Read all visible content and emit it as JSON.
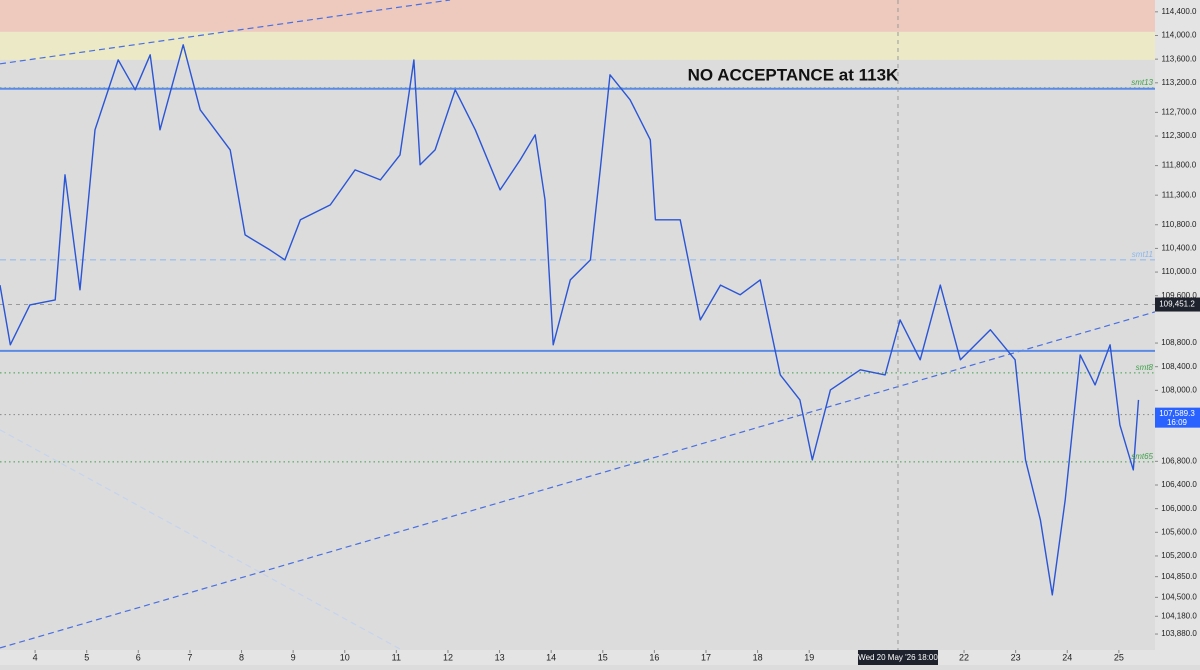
{
  "chart_data": {
    "type": "line",
    "annotation": "NO ACCEPTANCE at 113K",
    "xlim": [
      3.32,
      25.7
    ],
    "ylim": [
      103610,
      114600
    ],
    "xticks": [
      4,
      5,
      6,
      7,
      8,
      9,
      10,
      11,
      12,
      13,
      14,
      15,
      16,
      17,
      18,
      19,
      22,
      23,
      24,
      25
    ],
    "crosshair": {
      "x": 20.72,
      "x_label": "Wed 20 May '26  18:00",
      "y": 109451.2,
      "y_label": "109,451.2"
    },
    "yticks": [
      {
        "value": 114400,
        "label": "114,400.0"
      },
      {
        "value": 114000,
        "label": "114,000.0"
      },
      {
        "value": 113600,
        "label": "113,600.0"
      },
      {
        "value": 113200,
        "label": "113,200.0"
      },
      {
        "value": 112700,
        "label": "112,700.0"
      },
      {
        "value": 112300,
        "label": "112,300.0"
      },
      {
        "value": 111800,
        "label": "111,800.0"
      },
      {
        "value": 111300,
        "label": "111,300.0"
      },
      {
        "value": 110800,
        "label": "110,800.0"
      },
      {
        "value": 110400,
        "label": "110,400.0"
      },
      {
        "value": 110000,
        "label": "110,000.0"
      },
      {
        "value": 109600,
        "label": "109,600.0"
      },
      {
        "value": 108800,
        "label": "108,800.0"
      },
      {
        "value": 108400,
        "label": "108,400.0"
      },
      {
        "value": 108000,
        "label": "108,000.0"
      },
      {
        "value": 106800,
        "label": "106,800.0"
      },
      {
        "value": 106400,
        "label": "106,400.0"
      },
      {
        "value": 106000,
        "label": "106,000.0"
      },
      {
        "value": 105600,
        "label": "105,600.0"
      },
      {
        "value": 105200,
        "label": "105,200.0"
      },
      {
        "value": 104850,
        "label": "104,850.0"
      },
      {
        "value": 104500,
        "label": "104,500.0"
      },
      {
        "value": 104180,
        "label": "104,180.0"
      },
      {
        "value": 103880,
        "label": "103,880.0"
      }
    ],
    "x": [
      3.32,
      3.52,
      3.9,
      4.39,
      4.58,
      4.87,
      5.16,
      5.61,
      5.94,
      6.23,
      6.42,
      6.87,
      7.2,
      7.78,
      8.07,
      8.55,
      8.84,
      9.14,
      9.72,
      10.2,
      10.69,
      11.07,
      11.34,
      11.46,
      11.75,
      12.14,
      12.53,
      13.01,
      13.4,
      13.69,
      13.88,
      14.04,
      14.37,
      14.76,
      14.95,
      15.14,
      15.53,
      15.92,
      16.02,
      16.5,
      16.89,
      17.28,
      17.66,
      18.05,
      18.44,
      18.82,
      19.06,
      19.41,
      19.99,
      20.47,
      20.76,
      21.15,
      21.54,
      21.93,
      22.51,
      22.99,
      23.19,
      23.48,
      23.71,
      23.96,
      24.25,
      24.54,
      24.83,
      25.02,
      25.28,
      25.38
    ],
    "series": [
      {
        "color": "#2a55d6",
        "values": [
          109780,
          108770,
          109445,
          109530,
          111644,
          109700,
          112405,
          113588,
          113081,
          113673,
          112405,
          113842,
          112743,
          112066,
          110629,
          110375,
          110206,
          110883,
          111136,
          111728,
          111559,
          111981,
          113588,
          111813,
          112066,
          113081,
          112405,
          111390,
          111897,
          112320,
          111221,
          108770,
          109868,
          110206,
          111728,
          113335,
          112912,
          112236,
          110883,
          110883,
          109192,
          109780,
          109615,
          109868,
          108262,
          107839,
          106824,
          108008,
          108347,
          108262,
          109192,
          108516,
          109780,
          108516,
          109024,
          108516,
          106824,
          105810,
          104542,
          106148,
          108600,
          108093,
          108770,
          107416,
          106655,
          107839
        ]
      }
    ],
    "zones": [
      {
        "range": [
          114062,
          114600
        ],
        "color": "#f2c6b6"
      },
      {
        "range": [
          113588,
          114062
        ],
        "color": "#f0ecc2"
      }
    ],
    "levels": [
      {
        "value": 113115,
        "name": "smt13",
        "color": "#3fa04a",
        "dash": "dotted"
      },
      {
        "value": 113100,
        "color": "#5b8ae6",
        "dash": "solid"
      },
      {
        "value": 110206,
        "name": "smt11",
        "color": "#8ab6f0",
        "dash": "dashed"
      },
      {
        "value": 108668,
        "color": "#5b8ae6",
        "dash": "solid"
      },
      {
        "value": 108296,
        "name": "smt8",
        "color": "#3fa04a",
        "dash": "dotted"
      },
      {
        "value": 107589.3,
        "price_label": "107,589.3",
        "time_label": "16:09",
        "color": "#888888",
        "dash": "dotted"
      },
      {
        "value": 106790,
        "name": "smt65",
        "color": "#3fa04a",
        "dash": "dotted"
      }
    ],
    "trendlines": [
      {
        "x": [
          3.32,
          12.04
        ],
        "y": [
          113521,
          114600
        ],
        "color": "#4a6fe0"
      },
      {
        "x": [
          3.32,
          25.7
        ],
        "y": [
          103645,
          109327
        ],
        "color": "#4a6fe0"
      },
      {
        "x": [
          3.32,
          11.46
        ],
        "y": [
          107332,
          103441
        ],
        "color": "#c6d4ee"
      }
    ]
  }
}
